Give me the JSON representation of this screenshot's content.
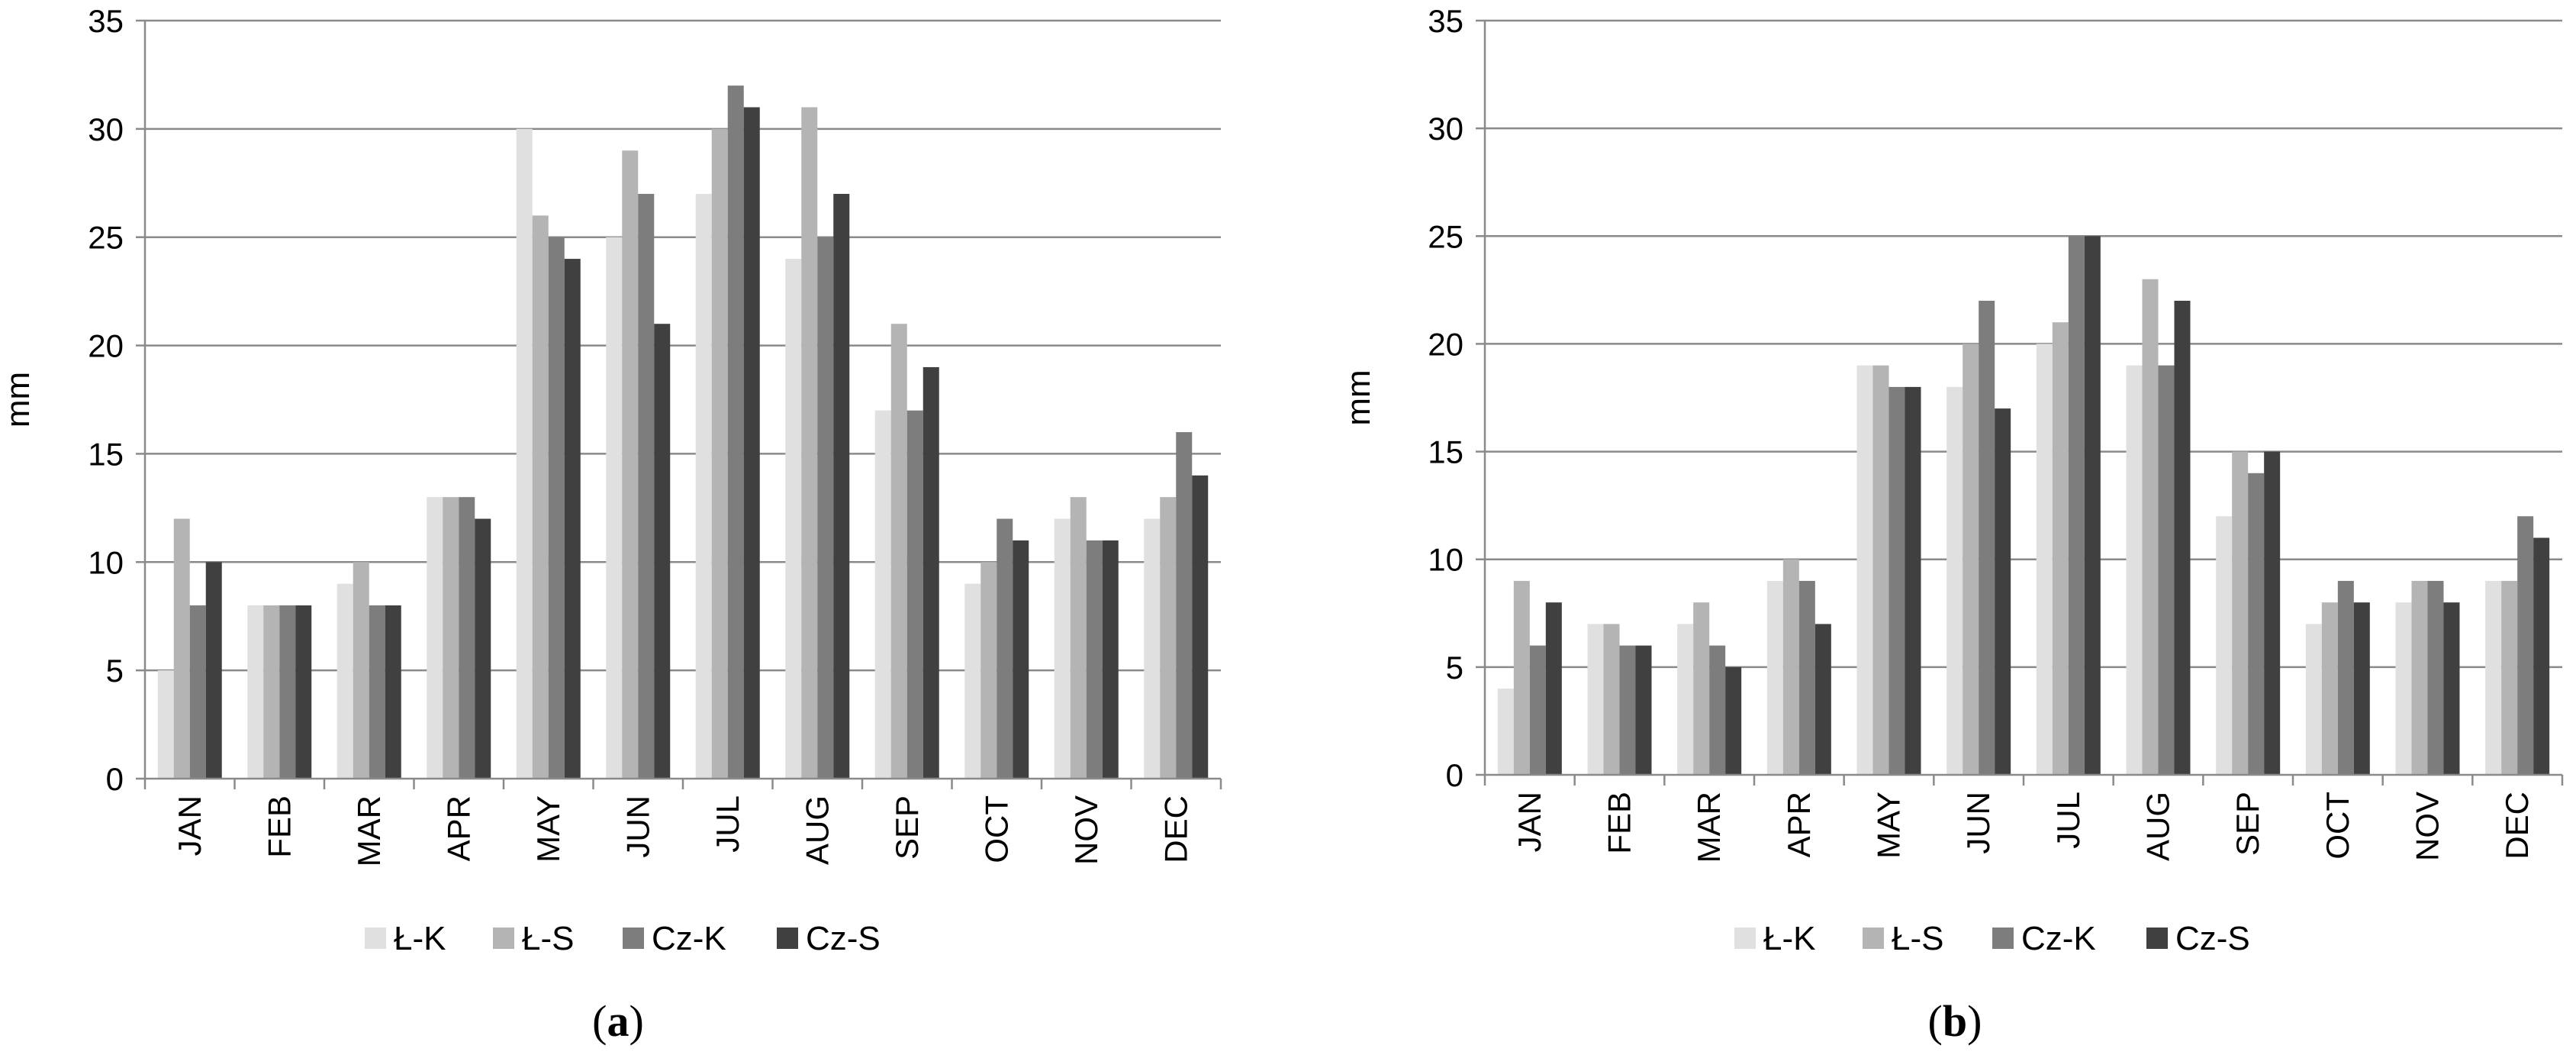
{
  "chart_data": [
    {
      "panel": "(a)",
      "type": "bar",
      "title": "",
      "xlabel": "",
      "ylabel": "mm",
      "ylim": [
        0,
        35
      ],
      "yticks": [
        0,
        5,
        10,
        15,
        20,
        25,
        30,
        35
      ],
      "grid": true,
      "legend_position": "bottom",
      "categories": [
        "JAN",
        "FEB",
        "MAR",
        "APR",
        "MAY",
        "JUN",
        "JUL",
        "AUG",
        "SEP",
        "OCT",
        "NOV",
        "DEC"
      ],
      "series": [
        {
          "name": "Ł-K",
          "color": "#e0e0e0",
          "values": [
            5,
            8,
            9,
            13,
            30,
            25,
            27,
            24,
            17,
            9,
            12,
            12
          ]
        },
        {
          "name": "Ł-S",
          "color": "#b4b4b4",
          "values": [
            12,
            8,
            10,
            13,
            26,
            29,
            30,
            31,
            21,
            10,
            13,
            13
          ]
        },
        {
          "name": "Cz-K",
          "color": "#7d7d7d",
          "values": [
            8,
            8,
            8,
            13,
            25,
            27,
            32,
            25,
            17,
            12,
            11,
            16
          ]
        },
        {
          "name": "Cz-S",
          "color": "#404040",
          "values": [
            10,
            8,
            8,
            12,
            24,
            21,
            31,
            27,
            19,
            11,
            11,
            14
          ]
        }
      ]
    },
    {
      "panel": "(b)",
      "type": "bar",
      "title": "",
      "xlabel": "",
      "ylabel": "mm",
      "ylim": [
        0,
        35
      ],
      "yticks": [
        0,
        5,
        10,
        15,
        20,
        25,
        30,
        35
      ],
      "grid": true,
      "legend_position": "bottom",
      "categories": [
        "JAN",
        "FEB",
        "MAR",
        "APR",
        "MAY",
        "JUN",
        "JUL",
        "AUG",
        "SEP",
        "OCT",
        "NOV",
        "DEC"
      ],
      "series": [
        {
          "name": "Ł-K",
          "color": "#e0e0e0",
          "values": [
            4,
            7,
            7,
            9,
            19,
            18,
            20,
            19,
            12,
            7,
            8,
            9
          ]
        },
        {
          "name": "Ł-S",
          "color": "#b4b4b4",
          "values": [
            9,
            7,
            8,
            10,
            19,
            20,
            21,
            23,
            15,
            8,
            9,
            9
          ]
        },
        {
          "name": "Cz-K",
          "color": "#7d7d7d",
          "values": [
            6,
            6,
            6,
            9,
            18,
            22,
            25,
            19,
            14,
            9,
            9,
            12
          ]
        },
        {
          "name": "Cz-S",
          "color": "#404040",
          "values": [
            8,
            6,
            5,
            7,
            18,
            17,
            25,
            22,
            15,
            8,
            8,
            11
          ]
        }
      ]
    }
  ]
}
